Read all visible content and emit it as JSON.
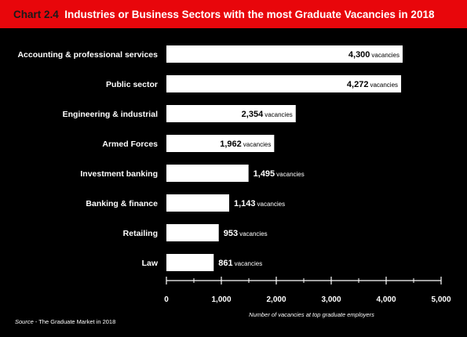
{
  "title": {
    "prefix": "Chart 2.4",
    "text": "Industries or Business Sectors with the most Graduate Vacancies in 2018"
  },
  "source": {
    "label": "Source",
    "text": " - The Graduate Market in 2018"
  },
  "colors": {
    "title_bar": "#e8060b",
    "background": "#000000",
    "bar": "#ffffff",
    "text": "#ffffff"
  },
  "chart_data": {
    "type": "bar",
    "orientation": "horizontal",
    "categories": [
      "Accounting & professional services",
      "Public sector",
      "Engineering & industrial",
      "Armed Forces",
      "Investment banking",
      "Banking & finance",
      "Retailing",
      "Law"
    ],
    "values": [
      4300,
      4272,
      2354,
      1962,
      1495,
      1143,
      953,
      861
    ],
    "value_labels": [
      "4,300",
      "4,272",
      "2,354",
      "1,962",
      "1,495",
      "1,143",
      "953",
      "861"
    ],
    "unit_label": "vacancies",
    "xlabel": "Number of vacancies at top graduate employers",
    "xlim": [
      0,
      5000
    ],
    "xticks": [
      0,
      1000,
      2000,
      3000,
      4000,
      5000
    ],
    "xtick_labels": [
      "0",
      "1,000",
      "2,000",
      "3,000",
      "4,000",
      "5,000"
    ],
    "grid": false,
    "legend": "none"
  }
}
